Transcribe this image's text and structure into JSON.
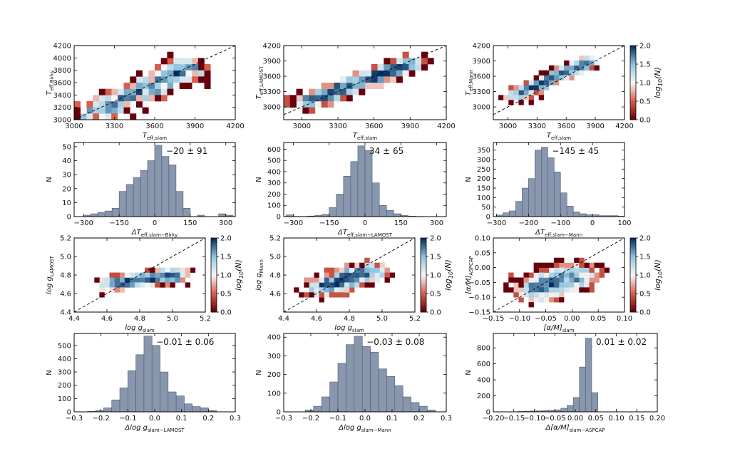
{
  "chart_data": [
    {
      "id": "p1",
      "type": "heatmap",
      "xlabel": "T_eff,slam",
      "ylabel": "T_eff,Birky",
      "xlim": [
        3000,
        4200
      ],
      "ylim": [
        3000,
        4200
      ],
      "xticks": [
        3000,
        3300,
        3600,
        3900,
        4200
      ],
      "yticks": [
        3000,
        3200,
        3400,
        3600,
        3800,
        4000,
        4200
      ],
      "center": [
        [
          3100,
          3050
        ],
        [
          3900,
          3880
        ]
      ],
      "spread": 120,
      "n": 95,
      "seed": 11,
      "diagonal": true
    },
    {
      "id": "p2",
      "type": "heatmap",
      "xlabel": "T_eff,slam",
      "ylabel": "T_eff,LAMOST",
      "xlim": [
        2850,
        4200
      ],
      "ylim": [
        2750,
        4200
      ],
      "xticks": [
        3000,
        3300,
        3600,
        3900,
        4200
      ],
      "yticks": [
        3000,
        3300,
        3600,
        3900,
        4200
      ],
      "center": [
        [
          3000,
          3050
        ],
        [
          3950,
          3900
        ]
      ],
      "spread": 90,
      "n": 130,
      "seed": 23,
      "diagonal": true
    },
    {
      "id": "p3",
      "type": "heatmap",
      "xlabel": "T_eff,slam",
      "ylabel": "T_eff,Mann",
      "xlim": [
        2850,
        4200
      ],
      "ylim": [
        2750,
        4200
      ],
      "xticks": [
        3000,
        3300,
        3600,
        3900,
        4200
      ],
      "yticks": [
        3000,
        3300,
        3600,
        3900,
        4200
      ],
      "center": [
        [
          3050,
          3200
        ],
        [
          3850,
          3900
        ]
      ],
      "spread": 70,
      "n": 110,
      "seed": 37,
      "diagonal": true,
      "colorbar": {
        "label": "log10(N)",
        "ticks": [
          0.0,
          0.5,
          1.0,
          1.5,
          2.0
        ]
      }
    },
    {
      "id": "h1",
      "type": "bar",
      "xlabel": "ΔT_eff,slam−Birky",
      "ylabel": "N",
      "annotation": "−20 ± 91",
      "xlim": [
        -340,
        340
      ],
      "ylim": [
        0,
        53
      ],
      "xticks": [
        -300,
        -150,
        0,
        150,
        300
      ],
      "yticks": [
        0,
        10,
        20,
        30,
        40,
        50
      ],
      "edges": [
        -300,
        -270,
        -240,
        -210,
        -180,
        -150,
        -120,
        -90,
        -60,
        -30,
        0,
        30,
        60,
        90,
        120,
        150,
        180,
        210,
        240,
        270,
        300,
        330
      ],
      "values": [
        1,
        2,
        3,
        4,
        6,
        18,
        23,
        28,
        33,
        40,
        51,
        43,
        37,
        18,
        6,
        0,
        1,
        0,
        0,
        2,
        1
      ]
    },
    {
      "id": "h2",
      "type": "bar",
      "xlabel": "ΔT_eff,slam−LAMOST",
      "ylabel": "N",
      "annotation": "34 ± 65",
      "xlim": [
        -340,
        340
      ],
      "ylim": [
        0,
        660
      ],
      "xticks": [
        -300,
        -150,
        0,
        150,
        300
      ],
      "yticks": [
        0,
        100,
        200,
        300,
        400,
        500,
        600
      ],
      "edges": [
        -330,
        -300,
        -270,
        -240,
        -210,
        -180,
        -150,
        -120,
        -90,
        -60,
        -30,
        0,
        30,
        60,
        90,
        120,
        150,
        180,
        210,
        240,
        270,
        300
      ],
      "values": [
        15,
        2,
        2,
        5,
        10,
        20,
        80,
        200,
        360,
        490,
        630,
        590,
        300,
        100,
        55,
        25,
        10,
        4,
        2,
        1,
        1
      ]
    },
    {
      "id": "h3",
      "type": "bar",
      "xlabel": "ΔT_eff,slam−Mann",
      "ylabel": "N",
      "annotation": "−145 ± 45",
      "xlim": [
        -310,
        100
      ],
      "ylim": [
        0,
        390
      ],
      "xticks": [
        -300,
        -200,
        -100,
        0,
        100
      ],
      "yticks": [
        0,
        50,
        100,
        150,
        200,
        250,
        300,
        350
      ],
      "edges": [
        -300,
        -280,
        -260,
        -240,
        -220,
        -200,
        -180,
        -160,
        -140,
        -120,
        -100,
        -80,
        -60,
        -40,
        -20,
        0,
        20,
        40,
        60,
        80,
        100
      ],
      "values": [
        8,
        20,
        30,
        80,
        150,
        200,
        350,
        365,
        310,
        235,
        125,
        55,
        25,
        15,
        10,
        10,
        5,
        5,
        5,
        2
      ]
    },
    {
      "id": "p4",
      "type": "heatmap",
      "xlabel": "log g_slam",
      "ylabel": "log g_LAMOST",
      "xlim": [
        4.4,
        5.2
      ],
      "ylim": [
        4.4,
        5.2
      ],
      "xticks": [
        4.4,
        4.6,
        4.8,
        5.0,
        5.2
      ],
      "yticks": [
        4.4,
        4.6,
        4.8,
        5.0,
        5.2
      ],
      "center": [
        [
          4.6,
          4.7
        ],
        [
          5.05,
          4.8
        ]
      ],
      "spread": 0.05,
      "n": 120,
      "seed": 41,
      "diagonal": true,
      "colorbar": {
        "label": "log10(N)",
        "ticks": [
          0.0,
          0.5,
          1.0,
          1.5,
          2.0
        ]
      }
    },
    {
      "id": "p5",
      "type": "heatmap",
      "xlabel": "log g_slam",
      "ylabel": "log g_Mann",
      "xlim": [
        4.4,
        5.2
      ],
      "ylim": [
        4.4,
        5.2
      ],
      "xticks": [
        4.4,
        4.6,
        4.8,
        5.0,
        5.2
      ],
      "yticks": [
        4.6,
        4.8,
        5.0,
        5.2
      ],
      "center": [
        [
          4.6,
          4.65
        ],
        [
          4.95,
          4.85
        ]
      ],
      "spread": 0.07,
      "n": 120,
      "seed": 53,
      "diagonal": true,
      "colorbar": {
        "label": "log10(N)",
        "ticks": [
          0.0,
          0.5,
          1.0,
          1.5,
          2.0
        ]
      }
    },
    {
      "id": "p6",
      "type": "heatmap",
      "xlabel": "[α/M]_slam",
      "ylabel": "[α/M]_ASPCAP",
      "xlim": [
        -0.15,
        0.1
      ],
      "ylim": [
        -0.15,
        0.1
      ],
      "xticks": [
        -0.15,
        -0.1,
        -0.05,
        0.0,
        0.05,
        0.1
      ],
      "yticks": [
        -0.15,
        -0.1,
        -0.05,
        0.0,
        0.05,
        0.1
      ],
      "center": [
        [
          -0.08,
          -0.08
        ],
        [
          0.02,
          -0.02
        ]
      ],
      "spread": 0.03,
      "n": 140,
      "seed": 67,
      "diagonal": true,
      "colorbar": {
        "label": "log10(N)",
        "ticks": [
          0.0,
          0.5,
          1.0,
          1.5,
          2.0
        ]
      }
    },
    {
      "id": "h4",
      "type": "bar",
      "xlabel": "Δlog g_slam−LAMOST",
      "ylabel": "N",
      "annotation": "−0.01 ± 0.06",
      "xlim": [
        -0.3,
        0.3
      ],
      "ylim": [
        0,
        590
      ],
      "xticks": [
        -0.3,
        -0.2,
        -0.1,
        0.0,
        0.1,
        0.2,
        0.3
      ],
      "yticks": [
        0,
        100,
        200,
        300,
        400,
        500
      ],
      "edges": [
        -0.25,
        -0.22,
        -0.19,
        -0.16,
        -0.13,
        -0.1,
        -0.07,
        -0.04,
        -0.01,
        0.02,
        0.05,
        0.08,
        0.11,
        0.14,
        0.17,
        0.2,
        0.23
      ],
      "values": [
        3,
        10,
        30,
        90,
        180,
        310,
        430,
        570,
        500,
        300,
        150,
        120,
        60,
        40,
        30,
        10
      ]
    },
    {
      "id": "h5",
      "type": "bar",
      "xlabel": "Δlog g_slam−Mann",
      "ylabel": "N",
      "annotation": "−0.03 ± 0.08",
      "xlim": [
        -0.3,
        0.3
      ],
      "ylim": [
        0,
        420
      ],
      "xticks": [
        -0.3,
        -0.2,
        -0.1,
        0.0,
        0.1,
        0.2,
        0.3
      ],
      "yticks": [
        0,
        100,
        200,
        300,
        400
      ],
      "edges": [
        -0.22,
        -0.19,
        -0.16,
        -0.13,
        -0.1,
        -0.07,
        -0.04,
        -0.01,
        0.02,
        0.05,
        0.08,
        0.11,
        0.14,
        0.17,
        0.2,
        0.23,
        0.26
      ],
      "values": [
        10,
        30,
        80,
        160,
        260,
        360,
        405,
        350,
        320,
        230,
        190,
        140,
        80,
        50,
        30,
        10
      ]
    },
    {
      "id": "h6",
      "type": "bar",
      "xlabel": "Δ[α/M]_slam−ASPCAP",
      "ylabel": "N",
      "annotation": "0.01 ± 0.02",
      "xlim": [
        -0.2,
        0.2
      ],
      "ylim": [
        0,
        980
      ],
      "xticks": [
        -0.2,
        -0.15,
        -0.1,
        -0.05,
        0.0,
        0.05,
        0.1,
        0.15,
        0.2
      ],
      "yticks": [
        0,
        200,
        400,
        600,
        800
      ],
      "edges": [
        -0.14,
        -0.125,
        -0.11,
        -0.095,
        -0.08,
        -0.065,
        -0.05,
        -0.035,
        -0.02,
        -0.005,
        0.01,
        0.025,
        0.04,
        0.055
      ],
      "values": [
        5,
        8,
        10,
        12,
        15,
        20,
        25,
        45,
        80,
        180,
        560,
        920,
        240
      ]
    }
  ],
  "colors": {
    "hist": "#8896ae",
    "hist_edge": "#4d5a70",
    "frame": "#000000"
  }
}
